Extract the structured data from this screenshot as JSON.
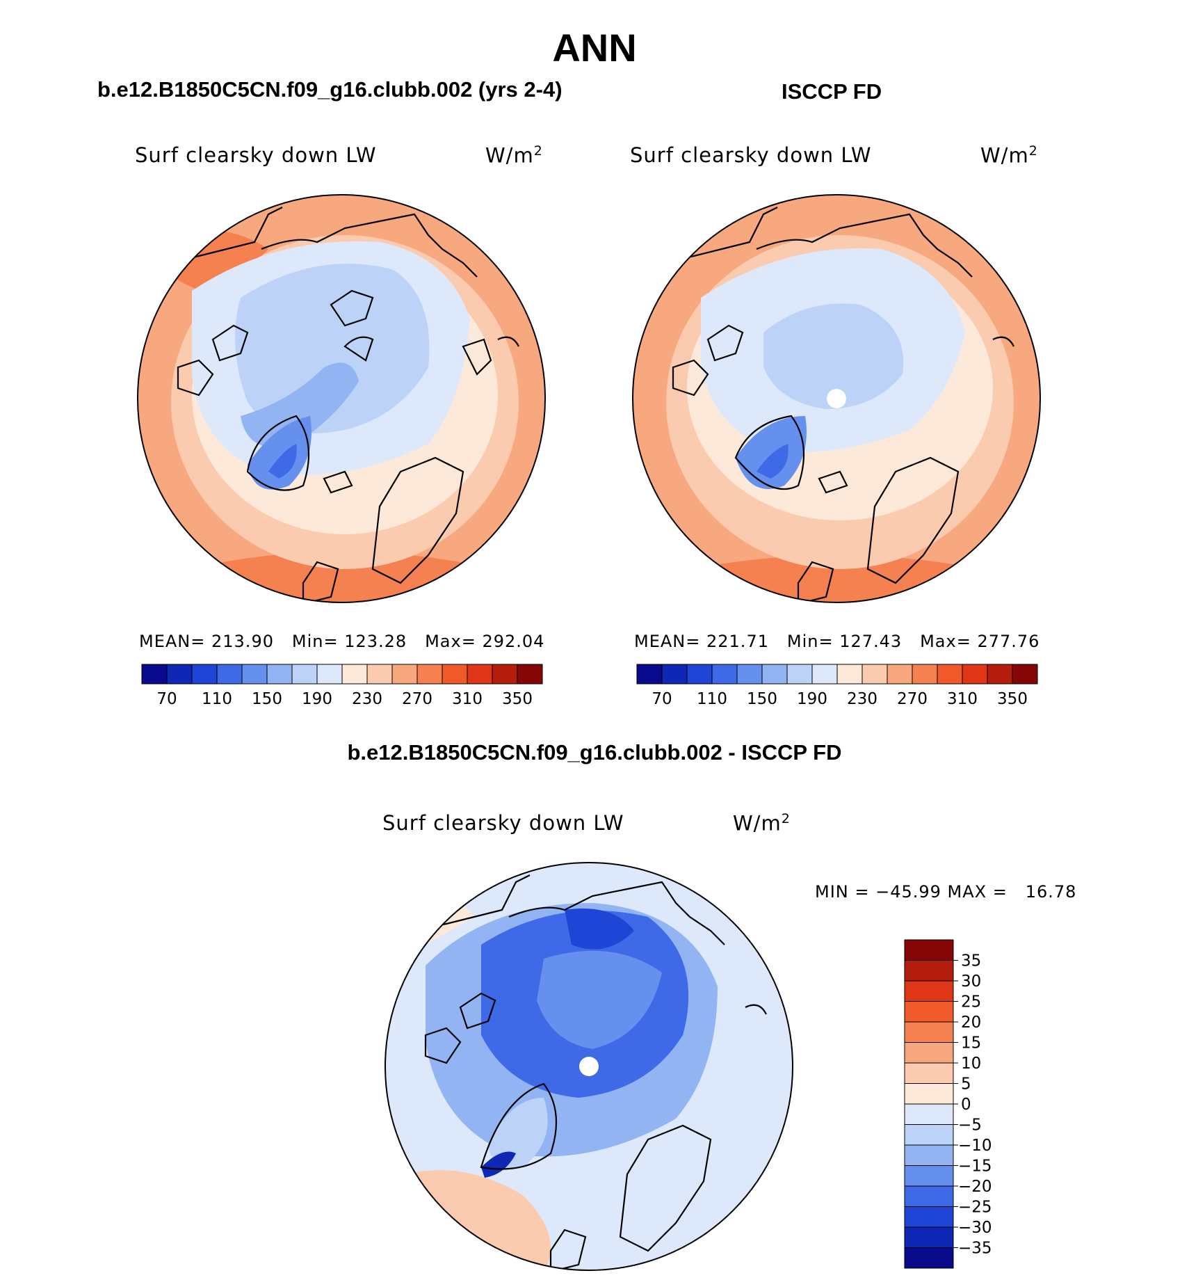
{
  "title": "ANN",
  "panels": [
    {
      "case_title": "b.e12.B1850C5CN.f09_g16.clubb.002 (yrs 2-4)",
      "variable": "Surf clearsky down LW",
      "units": "W/m",
      "units_sup": "2",
      "stats": {
        "mean_label": "MEAN=",
        "mean": "213.90",
        "min_label": "Min=",
        "min": "123.28",
        "max_label": "Max=",
        "max": "292.04"
      },
      "colorbar_labels": [
        "70",
        "110",
        "150",
        "190",
        "230",
        "270",
        "310",
        "350"
      ]
    },
    {
      "case_title": "ISCCP FD",
      "variable": "Surf clearsky down LW",
      "units": "W/m",
      "units_sup": "2",
      "stats": {
        "mean_label": "MEAN=",
        "mean": "221.71",
        "min_label": "Min=",
        "min": "127.43",
        "max_label": "Max=",
        "max": "277.76"
      },
      "colorbar_labels": [
        "70",
        "110",
        "150",
        "190",
        "230",
        "270",
        "310",
        "350"
      ]
    },
    {
      "case_title": "b.e12.B1850C5CN.f09_g16.clubb.002 - ISCCP FD",
      "variable": "Surf clearsky down LW",
      "units": "W/m",
      "units_sup": "2",
      "minmax": "MIN = −45.99 MAX =   16.78",
      "colorbar_labels": [
        "35",
        "30",
        "25",
        "20",
        "15",
        "10",
        "5",
        "0",
        "−5",
        "−10",
        "−15",
        "−20",
        "−25",
        "−30",
        "−35"
      ]
    }
  ],
  "colors": {
    "abs_scale": [
      "#0a0a8c",
      "#1026b4",
      "#1f45d6",
      "#3e6ae8",
      "#6690ee",
      "#93b4f3",
      "#bcd2f7",
      "#dde9fb",
      "#fde9d9",
      "#fbcbb0",
      "#f8a87f",
      "#f4814f",
      "#f05a2a",
      "#e03618",
      "#b41d0c",
      "#850606"
    ],
    "diff_scale": [
      "#0a0a8c",
      "#1026b4",
      "#1f45d6",
      "#3e6ae8",
      "#6690ee",
      "#93b4f3",
      "#bcd2f7",
      "#dde9fb",
      "#fde9d9",
      "#fbcbb0",
      "#f8a87f",
      "#f4814f",
      "#f05a2a",
      "#e03618",
      "#b41d0c",
      "#850606"
    ],
    "coastline": "#000000"
  },
  "chart_data": [
    {
      "type": "heatmap",
      "projection": "north polar stereographic",
      "variable": "Surf clearsky down LW",
      "units": "W/m2",
      "levels": [
        70,
        90,
        110,
        130,
        150,
        170,
        190,
        210,
        230,
        250,
        270,
        290,
        310,
        330,
        350
      ],
      "mean": 213.9,
      "min": 123.28,
      "max": 292.04
    },
    {
      "type": "heatmap",
      "projection": "north polar stereographic",
      "variable": "Surf clearsky down LW",
      "units": "W/m2",
      "levels": [
        70,
        90,
        110,
        130,
        150,
        170,
        190,
        210,
        230,
        250,
        270,
        290,
        310,
        330,
        350
      ],
      "mean": 221.71,
      "min": 127.43,
      "max": 277.76
    },
    {
      "type": "heatmap",
      "projection": "north polar stereographic",
      "variable": "Surf clearsky down LW",
      "units": "W/m2",
      "levels": [
        -35,
        -30,
        -25,
        -20,
        -15,
        -10,
        -5,
        0,
        5,
        10,
        15,
        20,
        25,
        30,
        35
      ],
      "min": -45.99,
      "max": 16.78
    }
  ]
}
